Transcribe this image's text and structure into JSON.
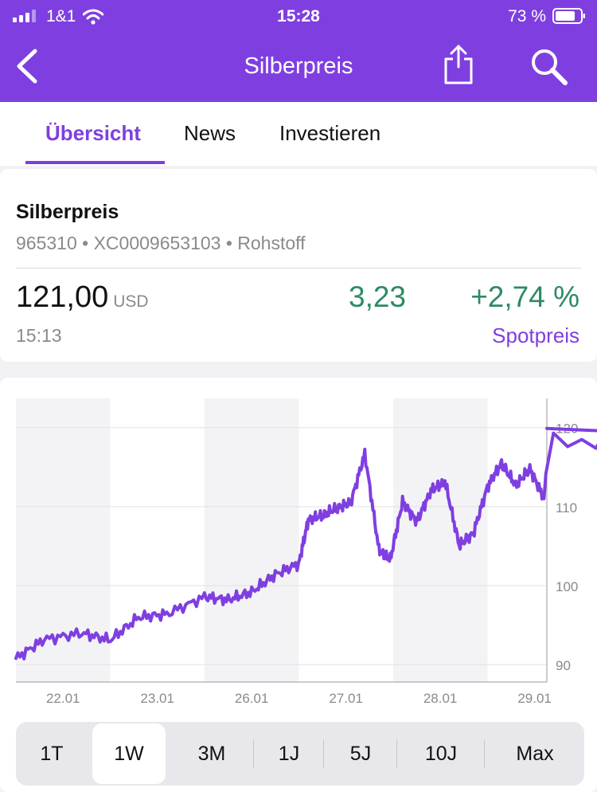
{
  "status": {
    "carrier": "1&1",
    "time": "15:28",
    "battery": "73 %"
  },
  "nav": {
    "title": "Silberpreis",
    "back_icon": "chevron-left-icon",
    "share_icon": "share-icon",
    "search_icon": "search-icon"
  },
  "tabs": [
    {
      "label": "Übersicht",
      "active": true
    },
    {
      "label": "News",
      "active": false
    },
    {
      "label": "Investieren",
      "active": false
    }
  ],
  "quote": {
    "name": "Silberpreis",
    "ids": "965310 • XC0009653103 • Rohstoff",
    "price": "121,00",
    "currency": "USD",
    "time": "15:13",
    "change": "3,23",
    "change_pct": "+2,74 %",
    "spot_label": "Spotpreis"
  },
  "colors": {
    "brand": "#7f3fe0",
    "positive": "#2d8a62"
  },
  "chart_data": {
    "type": "line",
    "x_ticks": [
      "22.01",
      "23.01",
      "26.01",
      "27.01",
      "28.01",
      "29.01"
    ],
    "y_ticks": [
      90,
      100,
      110,
      120
    ],
    "ylim": [
      87.8,
      123.7
    ],
    "grid": true,
    "series": [
      {
        "color": "#7f3fe0",
        "x": [
          0,
          0.3,
          0.7,
          1.0,
          1.3,
          1.6,
          2.0,
          2.25,
          2.5,
          2.75,
          3.0,
          3.1,
          3.25,
          3.4,
          3.55,
          3.7,
          3.85,
          3.97,
          4.1,
          4.25,
          4.4,
          4.55,
          4.7,
          4.85,
          5.0,
          5.15,
          5.3,
          5.45,
          5.6
        ],
        "values": [
          90.8,
          93.2,
          94.0,
          93.1,
          96.0,
          96.4,
          98.6,
          98.2,
          99.2,
          101.4,
          102.8,
          108.3,
          108.9,
          109.8,
          110.5,
          116.7,
          104.5,
          103.3,
          110.6,
          108.1,
          112.0,
          113.2,
          105.1,
          106.6,
          112.5,
          115.5,
          112.7,
          114.8,
          111.0
        ]
      }
    ],
    "last_point": {
      "x": 5.63,
      "y": 119.9
    }
  },
  "ranges": [
    {
      "label": "1T",
      "active": false
    },
    {
      "label": "1W",
      "active": true
    },
    {
      "label": "3M",
      "active": false
    },
    {
      "label": "1J",
      "active": false
    },
    {
      "label": "5J",
      "active": false
    },
    {
      "label": "10J",
      "active": false
    },
    {
      "label": "Max",
      "active": false
    }
  ]
}
